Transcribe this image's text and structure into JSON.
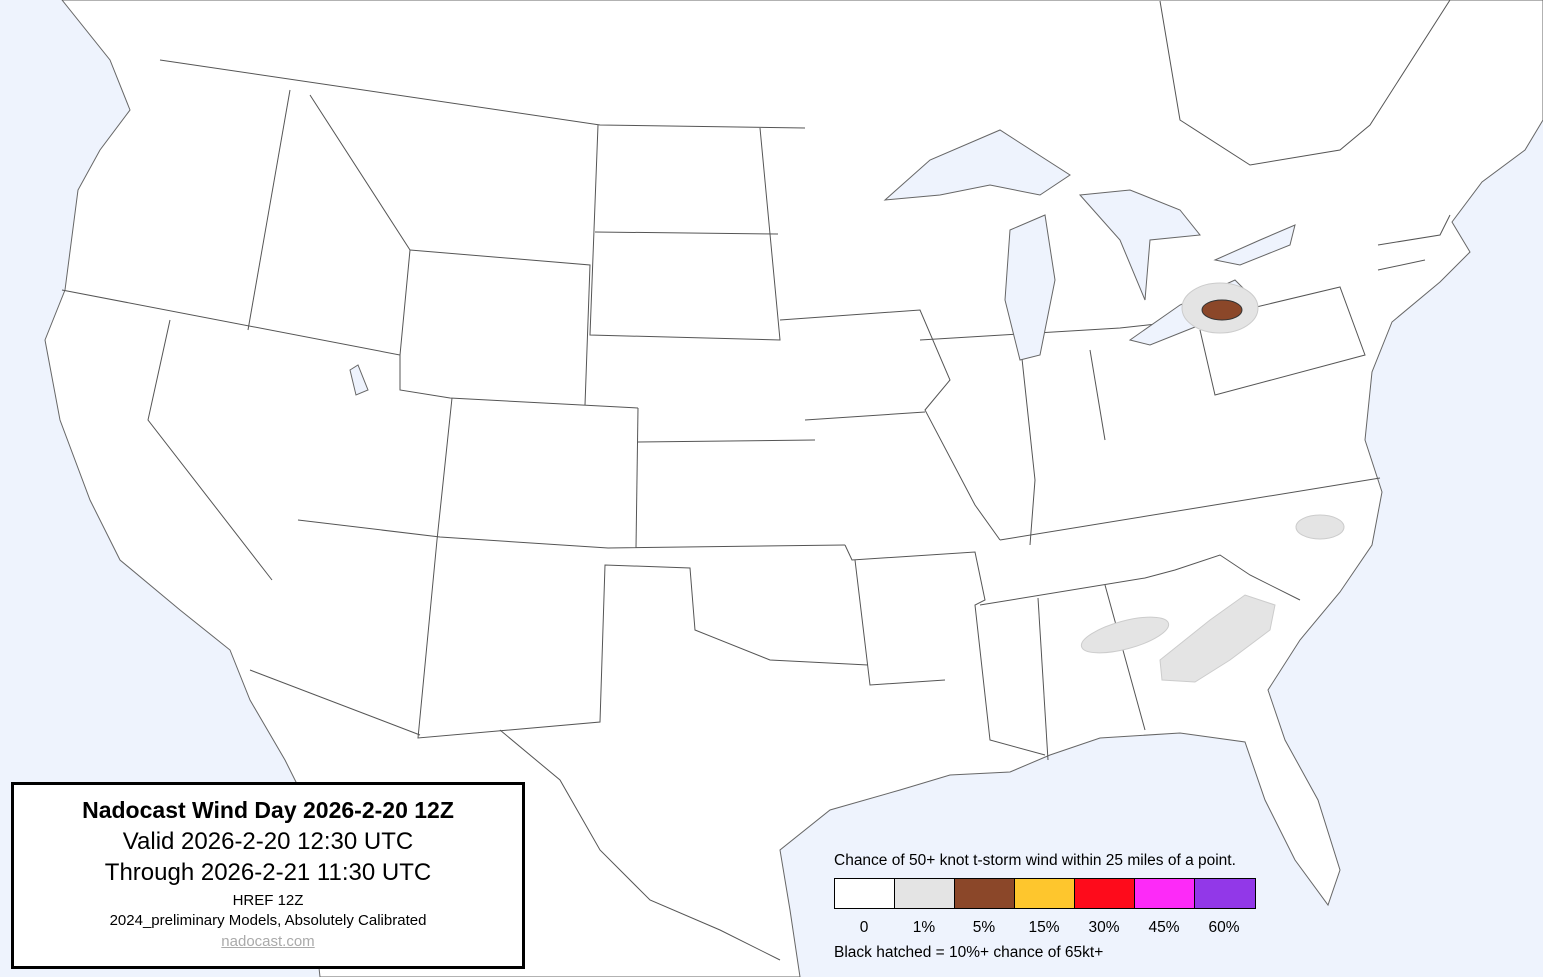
{
  "title_box": {
    "title": "Nadocast Wind Day 2026-2-20 12Z",
    "valid": "Valid 2026-2-20 12:30 UTC",
    "through": "Through 2026-2-21 11:30 UTC",
    "model": "HREF 12Z",
    "calibration": "2024_preliminary Models, Absolutely Calibrated",
    "link": "nadocast.com"
  },
  "legend": {
    "title": "Chance of 50+ knot t-storm wind within 25 miles of a point.",
    "levels": [
      {
        "label": "0",
        "color": "#ffffff"
      },
      {
        "label": "1%",
        "color": "#e4e4e4"
      },
      {
        "label": "5%",
        "color": "#8b4729"
      },
      {
        "label": "15%",
        "color": "#fec62d"
      },
      {
        "label": "30%",
        "color": "#fe0b1b"
      },
      {
        "label": "45%",
        "color": "#fd2af8"
      },
      {
        "label": "60%",
        "color": "#9238e8"
      }
    ],
    "hatch_note": "Black hatched = 10%+ chance of 65kt+"
  },
  "colors": {
    "water": "#eef3fd",
    "land": "#ffffff",
    "border": "#555555"
  },
  "risk_areas": [
    {
      "region": "Lake Erie / northern Ohio",
      "level": "1%"
    },
    {
      "region": "Lake Erie / northeast Ohio",
      "level": "5%"
    },
    {
      "region": "central North Carolina",
      "level": "1%"
    },
    {
      "region": "Alabama / Georgia",
      "level": "1%"
    },
    {
      "region": "Georgia / South Carolina",
      "level": "1%"
    }
  ]
}
